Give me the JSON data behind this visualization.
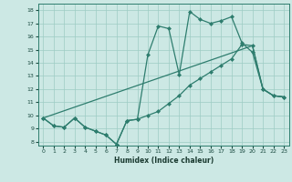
{
  "xlabel": "Humidex (Indice chaleur)",
  "bg_color": "#cce8e4",
  "line_color": "#2e7d6e",
  "xlim": [
    -0.5,
    23.5
  ],
  "ylim": [
    7.7,
    18.5
  ],
  "xticks": [
    0,
    1,
    2,
    3,
    4,
    5,
    6,
    7,
    8,
    9,
    10,
    11,
    12,
    13,
    14,
    15,
    16,
    17,
    18,
    19,
    20,
    21,
    22,
    23
  ],
  "yticks": [
    8,
    9,
    10,
    11,
    12,
    13,
    14,
    15,
    16,
    17,
    18
  ],
  "line1_x": [
    0,
    1,
    2,
    3,
    4,
    5,
    6,
    7,
    8,
    9,
    10,
    11,
    12,
    13,
    14,
    15,
    16,
    17,
    18,
    19,
    20,
    21,
    22,
    23
  ],
  "line1_y": [
    9.8,
    9.2,
    9.1,
    9.8,
    9.1,
    8.8,
    8.5,
    7.8,
    9.6,
    9.7,
    14.6,
    16.8,
    16.6,
    13.1,
    17.9,
    17.3,
    17.0,
    17.2,
    17.5,
    15.5,
    14.8,
    12.0,
    11.5,
    11.4
  ],
  "line2_x": [
    0,
    1,
    2,
    3,
    4,
    5,
    6,
    7,
    8,
    9,
    10,
    11,
    12,
    13,
    14,
    15,
    16,
    17,
    18,
    19,
    20,
    21,
    22,
    23
  ],
  "line2_y": [
    9.8,
    9.2,
    9.1,
    9.8,
    9.1,
    8.8,
    8.5,
    7.8,
    9.6,
    9.7,
    10.0,
    10.3,
    10.9,
    11.5,
    12.3,
    12.8,
    13.3,
    13.8,
    14.3,
    15.4,
    15.3,
    12.0,
    11.5,
    11.4
  ],
  "line3_x": [
    0,
    20,
    21,
    22,
    23
  ],
  "line3_y": [
    9.8,
    15.3,
    12.0,
    11.5,
    11.4
  ]
}
